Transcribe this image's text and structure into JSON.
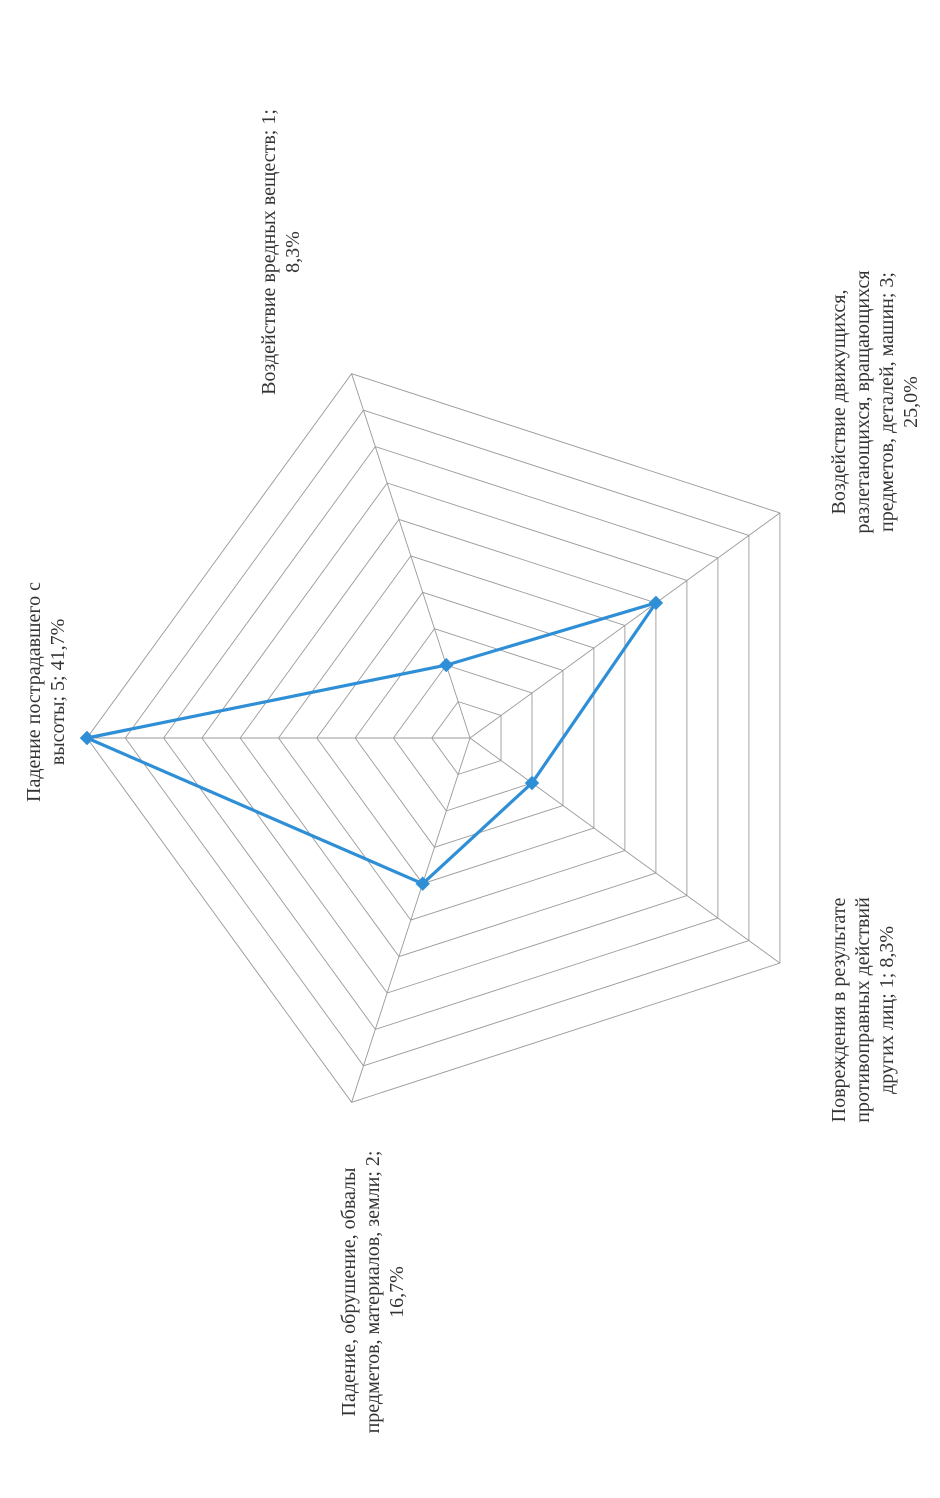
{
  "chart_data": {
    "type": "radar",
    "title": "",
    "orientation": "rotated-90-counterclockwise",
    "categories": [
      "Падение пострадавшего с высоты",
      "Воздействие вредных веществ",
      "Воздействие движущихся, разлетающихся, вращающихся предметов, деталей, машин",
      "Повреждения в результате противоправных действий других лиц",
      "Падение, обрушение, обвалы предметов, материалов, земли"
    ],
    "values": [
      5,
      1,
      3,
      1,
      2
    ],
    "percentages": [
      "41,7%",
      "8,3%",
      "25,0%",
      "8,3%",
      "16,7%"
    ],
    "rmax": 5,
    "grid_rings": 10,
    "grid": true,
    "legend": "none",
    "series_color": "#2f8fd6",
    "labels": [
      {
        "lines": [
          "Падение пострадавшего с",
          "высоты; 5; 41,7%"
        ]
      },
      {
        "lines": [
          "Воздействие вредных веществ; 1;",
          "8,3%"
        ]
      },
      {
        "lines": [
          "Воздействие движущихся,",
          "разлетающихся, вращающихся",
          "предметов, деталей, машин; 3;",
          "25,0%"
        ]
      },
      {
        "lines": [
          "Повреждения в результате",
          "противоправных действий",
          "других лиц; 1; 8,3%"
        ]
      },
      {
        "lines": [
          "Падение, обрушение, обвалы",
          "предметов, материалов, земли; 2;",
          "16,7%"
        ]
      }
    ]
  }
}
